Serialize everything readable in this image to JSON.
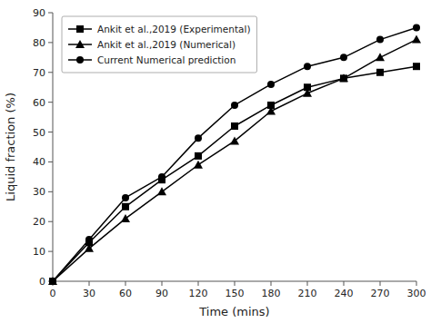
{
  "chart_data": {
    "type": "line",
    "xlabel": "Time (mins)",
    "ylabel": "Liquid fraction (%)",
    "x": [
      0,
      30,
      60,
      90,
      120,
      150,
      180,
      210,
      240,
      270,
      300
    ],
    "xlim": [
      0,
      300
    ],
    "ylim": [
      0,
      90
    ],
    "xticks": [
      0,
      30,
      60,
      90,
      120,
      150,
      180,
      210,
      240,
      270,
      300
    ],
    "yticks": [
      0,
      10,
      20,
      30,
      40,
      50,
      60,
      70,
      80,
      90
    ],
    "grid": false,
    "legend": "upper left",
    "series": [
      {
        "name": "Ankit et al.,2019 (Experimental)",
        "color": "#000000",
        "marker": "square",
        "values": [
          0,
          13,
          25,
          34,
          42,
          52,
          59,
          65,
          68,
          70,
          72
        ]
      },
      {
        "name": "Ankit et al.,2019 (Numerical)",
        "color": "#000000",
        "marker": "triangle",
        "values": [
          0,
          11,
          21,
          30,
          39,
          47,
          57,
          63,
          68,
          75,
          81
        ]
      },
      {
        "name": "Current Numerical prediction",
        "color": "#000000",
        "marker": "circle",
        "values": [
          0,
          14,
          28,
          35,
          48,
          59,
          66,
          72,
          75,
          81,
          85
        ]
      }
    ]
  }
}
